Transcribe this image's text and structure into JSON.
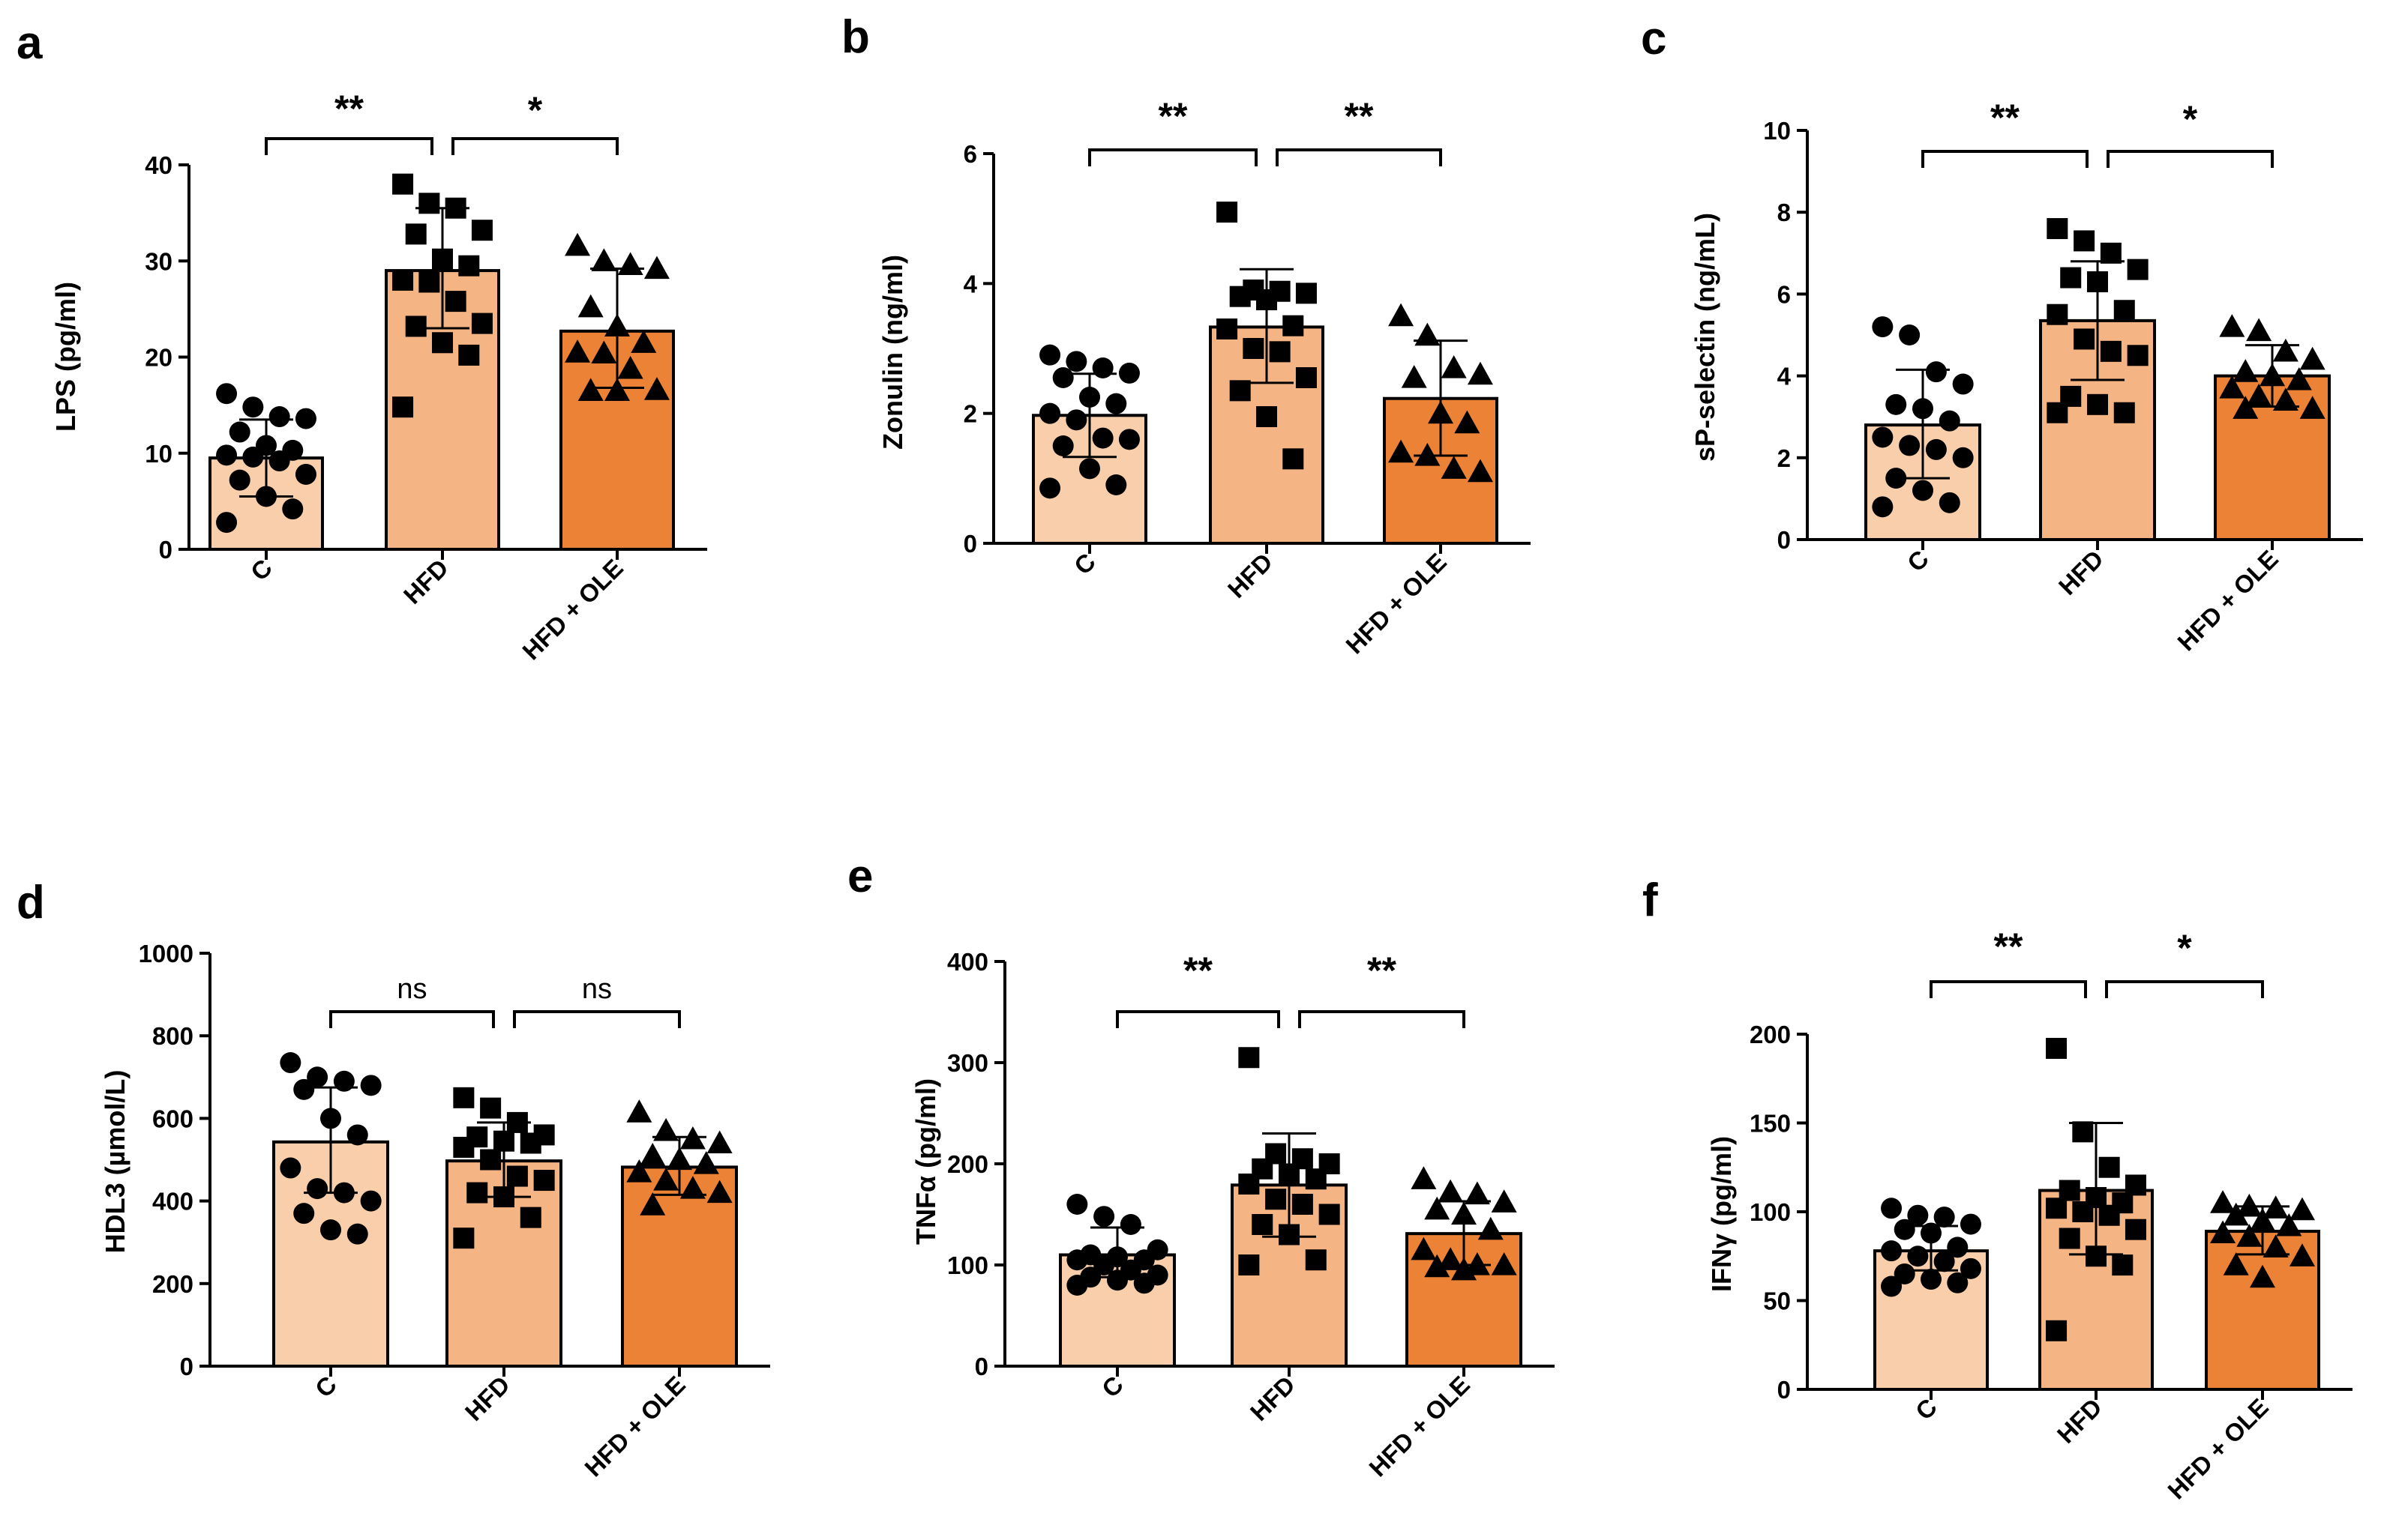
{
  "chart_data": [
    {
      "panel": "a",
      "type": "bar",
      "ylabel": "LPS  (pg/ml)",
      "ylim": [
        0,
        40
      ],
      "yticks": [
        0,
        10,
        20,
        30,
        40
      ],
      "categories": [
        "C",
        "HFD",
        "HFD + OLE"
      ],
      "values": [
        9.5,
        29,
        22.7
      ],
      "errors": [
        [
          5.5,
          13.5
        ],
        [
          23,
          35.5
        ],
        [
          16.8,
          29.2
        ]
      ],
      "markers": [
        "circle",
        "square",
        "triangle"
      ],
      "points": [
        [
          16.2,
          14.8,
          13.8,
          13.6,
          12.2,
          10.8,
          10.3,
          9.8,
          9.6,
          9.2,
          7.8,
          7.2,
          5.5,
          4.2,
          2.8
        ],
        [
          38,
          36,
          35.5,
          33.2,
          32.8,
          30.2,
          29.5,
          28,
          27.8,
          25.8,
          23.5,
          23.2,
          21.5,
          20.2,
          14.8
        ],
        [
          31.6,
          30,
          29.6,
          29.2,
          25.2,
          23.2,
          21.5,
          20.5,
          20.4,
          18.8,
          16.6,
          16.5,
          16.5
        ]
      ],
      "comparisons": [
        {
          "from": 0,
          "to": 1,
          "label": "**"
        },
        {
          "from": 1,
          "to": 2,
          "label": "*"
        }
      ],
      "colors": [
        "#f9cfab",
        "#f4b483",
        "#ec8236"
      ]
    },
    {
      "panel": "b",
      "type": "bar",
      "ylabel": "Zonulin (ng/ml)",
      "ylim": [
        0,
        6
      ],
      "yticks": [
        0,
        2,
        4,
        6
      ],
      "categories": [
        "C",
        "HFD",
        "HFD + OLE"
      ],
      "values": [
        1.97,
        3.33,
        2.23
      ],
      "errors": [
        [
          1.33,
          2.61
        ],
        [
          2.47,
          4.22
        ],
        [
          1.35,
          3.12
        ]
      ],
      "markers": [
        "circle",
        "square",
        "triangle"
      ],
      "points": [
        [
          2.9,
          2.8,
          2.7,
          2.62,
          2.55,
          2.25,
          2.15,
          2.0,
          1.9,
          1.62,
          1.6,
          1.5,
          1.15,
          0.9,
          0.85
        ],
        [
          5.1,
          3.9,
          3.88,
          3.85,
          3.8,
          3.75,
          3.35,
          3.3,
          3.0,
          2.95,
          2.55,
          2.35,
          1.95,
          1.3
        ],
        [
          3.5,
          3.2,
          2.7,
          2.6,
          2.55,
          2.0,
          1.85,
          1.4,
          1.35,
          1.15,
          1.1
        ]
      ],
      "comparisons": [
        {
          "from": 0,
          "to": 1,
          "label": "**"
        },
        {
          "from": 1,
          "to": 2,
          "label": "**"
        }
      ],
      "colors": [
        "#f9cfab",
        "#f4b483",
        "#ec8236"
      ]
    },
    {
      "panel": "c",
      "type": "bar",
      "ylabel": "sP-selectin (ng/mL)",
      "ylim": [
        0,
        10
      ],
      "yticks": [
        0,
        2,
        4,
        6,
        8,
        10
      ],
      "categories": [
        "C",
        "HFD",
        "HFD + OLE"
      ],
      "values": [
        2.8,
        5.35,
        4.0
      ],
      "errors": [
        [
          1.5,
          4.15
        ],
        [
          3.9,
          6.8
        ],
        [
          3.25,
          4.75
        ]
      ],
      "markers": [
        "circle",
        "square",
        "triangle"
      ],
      "points": [
        [
          5.2,
          5.0,
          4.1,
          3.8,
          3.3,
          3.2,
          2.9,
          2.5,
          2.3,
          2.2,
          2.0,
          1.5,
          1.2,
          0.9,
          0.8
        ],
        [
          7.6,
          7.3,
          7.0,
          6.6,
          6.4,
          6.3,
          5.6,
          5.5,
          4.9,
          4.6,
          4.5,
          3.5,
          3.3,
          3.1,
          3.1
        ],
        [
          5.2,
          5.1,
          4.6,
          4.4,
          4.1,
          4.0,
          3.9,
          3.7,
          3.5,
          3.4,
          3.2,
          3.2
        ]
      ],
      "comparisons": [
        {
          "from": 0,
          "to": 1,
          "label": "**"
        },
        {
          "from": 1,
          "to": 2,
          "label": "*"
        }
      ],
      "colors": [
        "#f9cfab",
        "#f4b483",
        "#ec8236"
      ]
    },
    {
      "panel": "d",
      "type": "bar",
      "ylabel": "HDL3 (µmol/L)",
      "ylim": [
        0,
        1000
      ],
      "yticks": [
        0,
        200,
        400,
        600,
        800,
        1000
      ],
      "categories": [
        "C",
        "HFD",
        "HFD + OLE"
      ],
      "values": [
        543,
        497,
        482
      ],
      "errors": [
        [
          420,
          675
        ],
        [
          410,
          590
        ],
        [
          415,
          555
        ]
      ],
      "markers": [
        "circle",
        "square",
        "triangle"
      ],
      "points": [
        [
          735,
          700,
          690,
          680,
          670,
          600,
          560,
          480,
          430,
          420,
          400,
          370,
          330,
          320
        ],
        [
          650,
          625,
          590,
          560,
          555,
          545,
          540,
          530,
          500,
          460,
          450,
          420,
          410,
          360,
          310
        ],
        [
          615,
          570,
          550,
          540,
          510,
          500,
          490,
          470,
          450,
          430,
          420,
          390
        ]
      ],
      "comparisons": [
        {
          "from": 0,
          "to": 1,
          "label": "ns"
        },
        {
          "from": 1,
          "to": 2,
          "label": "ns"
        }
      ],
      "colors": [
        "#f9cfab",
        "#f4b483",
        "#ec8236"
      ]
    },
    {
      "panel": "e",
      "type": "bar",
      "ylabel": "TNFα (pg/ml)",
      "ylim": [
        0,
        400
      ],
      "yticks": [
        0,
        100,
        200,
        300,
        400
      ],
      "categories": [
        "C",
        "HFD",
        "HFD + OLE"
      ],
      "values": [
        110,
        179,
        131
      ],
      "errors": [
        [
          88,
          137
        ],
        [
          128,
          230
        ],
        [
          100,
          163
        ]
      ],
      "markers": [
        "circle",
        "square",
        "triangle"
      ],
      "points": [
        [
          160,
          148,
          140,
          115,
          110,
          108,
          105,
          105,
          100,
          95,
          90,
          88,
          85,
          82,
          80
        ],
        [
          305,
          210,
          205,
          200,
          195,
          190,
          185,
          180,
          165,
          160,
          150,
          140,
          130,
          105,
          100
        ],
        [
          185,
          172,
          170,
          162,
          155,
          150,
          135,
          115,
          105,
          100,
          100,
          98,
          95
        ]
      ],
      "comparisons": [
        {
          "from": 0,
          "to": 1,
          "label": "**"
        },
        {
          "from": 1,
          "to": 2,
          "label": "**"
        }
      ],
      "colors": [
        "#f9cfab",
        "#f4b483",
        "#ec8236"
      ]
    },
    {
      "panel": "f",
      "type": "bar",
      "ylabel": "IFNγ (pg/ml)",
      "ylim": [
        0,
        200
      ],
      "yticks": [
        0,
        50,
        100,
        150,
        200
      ],
      "categories": [
        "C",
        "HFD",
        "HFD + OLE"
      ],
      "values": [
        78,
        112,
        89
      ],
      "errors": [
        [
          67,
          92
        ],
        [
          76,
          150
        ],
        [
          76,
          103
        ]
      ],
      "markers": [
        "circle",
        "square",
        "triangle"
      ],
      "points": [
        [
          102,
          98,
          97,
          93,
          90,
          88,
          80,
          78,
          75,
          72,
          68,
          65,
          62,
          60,
          58
        ],
        [
          192,
          145,
          125,
          115,
          112,
          108,
          105,
          102,
          100,
          98,
          90,
          85,
          75,
          70,
          33
        ],
        [
          105,
          103,
          102,
          101,
          98,
          95,
          92,
          88,
          86,
          80,
          75,
          70,
          63
        ]
      ],
      "comparisons": [
        {
          "from": 0,
          "to": 1,
          "label": "**"
        },
        {
          "from": 1,
          "to": 2,
          "label": "*"
        }
      ],
      "colors": [
        "#f9cfab",
        "#f4b483",
        "#ec8236"
      ]
    }
  ]
}
